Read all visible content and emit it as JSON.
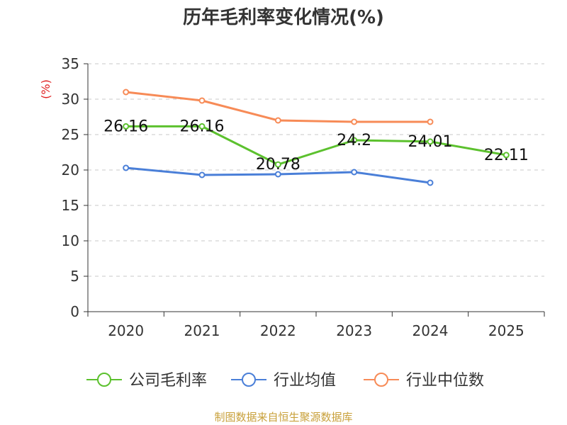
{
  "chart_data": {
    "type": "line",
    "title": "历年毛利率变化情况(%)",
    "ylabel": "(%)",
    "xlabel": "",
    "ylim": [
      0,
      35
    ],
    "yticks": [
      0,
      5,
      10,
      15,
      20,
      25,
      30,
      35
    ],
    "categories": [
      "2020",
      "2021",
      "2022",
      "2023",
      "2024",
      "2025"
    ],
    "grid": true,
    "legend_position": "bottom",
    "series": [
      {
        "name": "公司毛利率",
        "color": "#5cc12e",
        "show_labels": true,
        "values": [
          26.16,
          26.16,
          20.78,
          24.2,
          24.01,
          22.11
        ]
      },
      {
        "name": "行业均值",
        "color": "#4a7fd8",
        "show_labels": false,
        "values": [
          20.3,
          19.3,
          19.4,
          19.7,
          18.2,
          null
        ]
      },
      {
        "name": "行业中位数",
        "color": "#f78b57",
        "show_labels": false,
        "values": [
          31.0,
          29.8,
          27.0,
          26.8,
          26.8,
          null
        ]
      }
    ]
  },
  "source": "制图数据来自恒生聚源数据库"
}
